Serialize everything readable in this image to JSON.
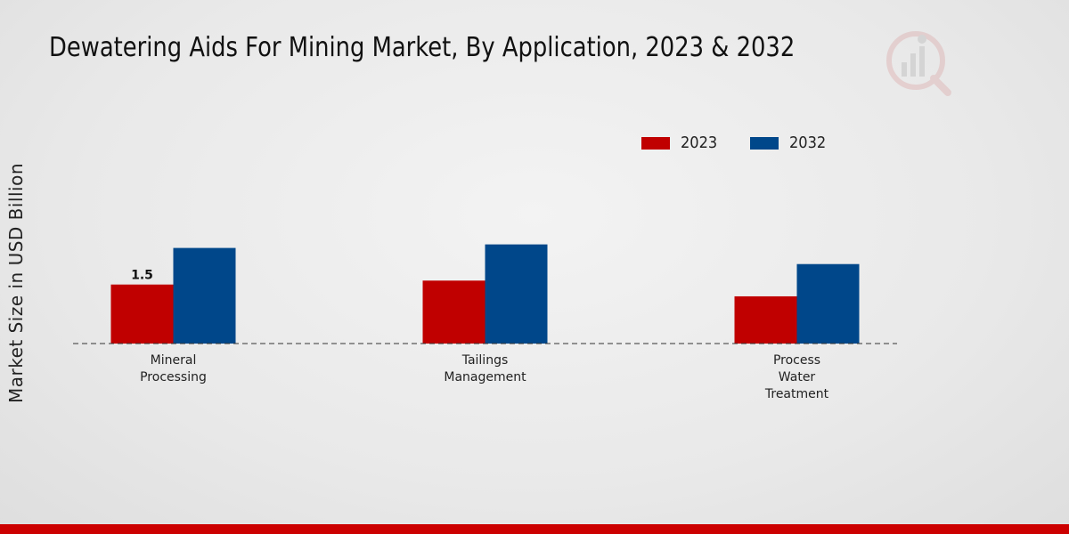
{
  "chart_data": {
    "type": "bar",
    "title": "Dewatering Aids For Mining Market, By Application, 2023 & 2032",
    "xlabel": "",
    "ylabel": "Market Size in USD Billion",
    "categories": [
      [
        "Mineral",
        "Processing"
      ],
      [
        "Tailings",
        "Management"
      ],
      [
        "Process",
        "Water",
        "Treatment"
      ]
    ],
    "series": [
      {
        "name": "2023",
        "color": "#c00000",
        "values": [
          1.5,
          1.6,
          1.2
        ]
      },
      {
        "name": "2032",
        "color": "#00478a",
        "values": [
          2.43,
          2.52,
          2.02
        ]
      }
    ],
    "data_labels": [
      {
        "series": 0,
        "index": 0,
        "text": "1.5"
      }
    ],
    "ylim": [
      0,
      8.5
    ],
    "grid": false,
    "legend_position": "top-right"
  }
}
